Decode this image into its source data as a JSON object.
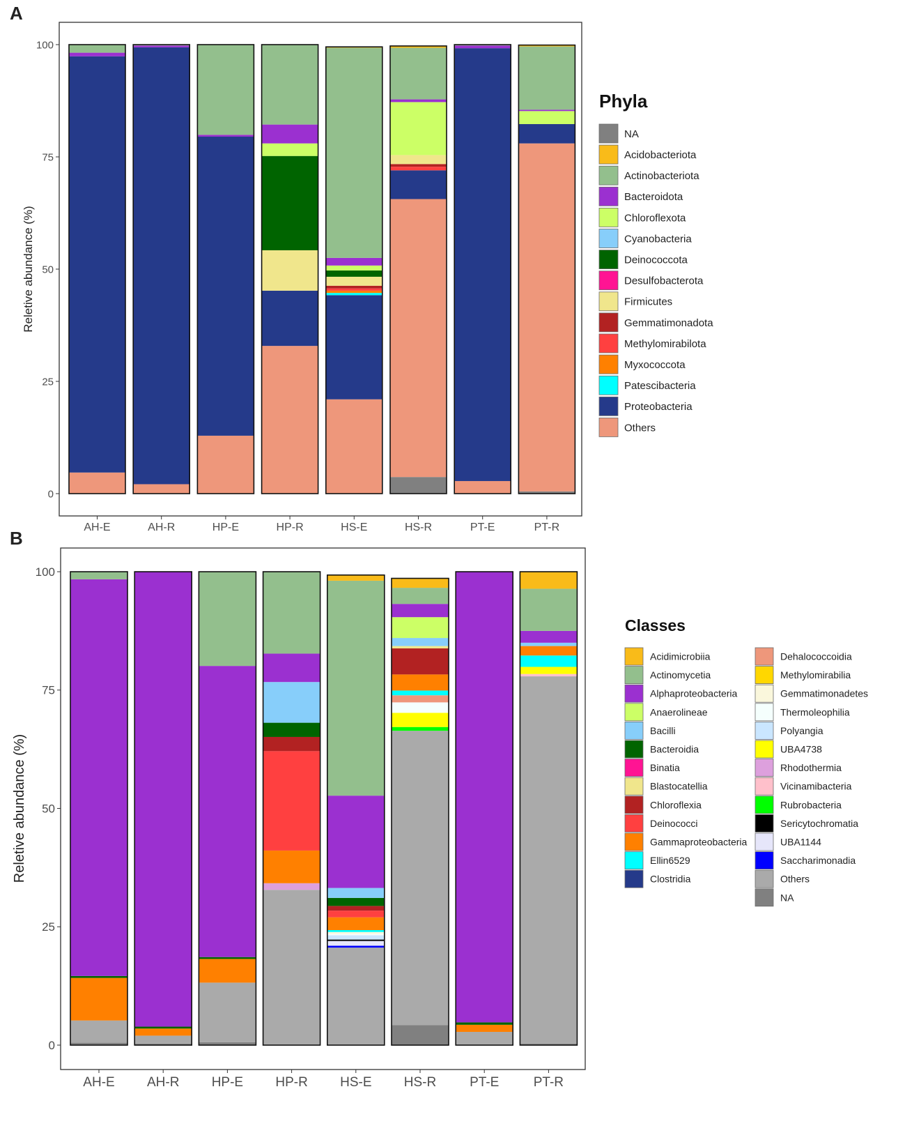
{
  "chart_data": [
    {
      "panel": "A",
      "type": "stacked-bar",
      "ylabel": "Reletive abundance (%)",
      "xlabel": "",
      "ylim": [
        0,
        100
      ],
      "yticks": [
        "0",
        "25",
        "50",
        "75",
        "100"
      ],
      "categories": [
        "AH-E",
        "AH-R",
        "HP-E",
        "HP-R",
        "HS-E",
        "HS-R",
        "PT-E",
        "PT-R"
      ],
      "legend_title": "Phyla",
      "legend": [
        {
          "name": "NA",
          "color": "#808080"
        },
        {
          "name": "Acidobacteriota",
          "color": "#F9BB19"
        },
        {
          "name": "Actinobacteriota",
          "color": "#93BF8D"
        },
        {
          "name": "Bacteroidota",
          "color": "#9B30D0"
        },
        {
          "name": "Chloroflexota",
          "color": "#CCFF66"
        },
        {
          "name": "Cyanobacteria",
          "color": "#87CEFA"
        },
        {
          "name": "Deinococcota",
          "color": "#006400"
        },
        {
          "name": "Desulfobacterota",
          "color": "#FF1493"
        },
        {
          "name": "Firmicutes",
          "color": "#F0E68C"
        },
        {
          "name": "Gemmatimonadota",
          "color": "#B22222"
        },
        {
          "name": "Methylomirabilota",
          "color": "#FF4040"
        },
        {
          "name": "Myxococcota",
          "color": "#FF8000"
        },
        {
          "name": "Patescibacteria",
          "color": "#00FFFF"
        },
        {
          "name": "Proteobacteria",
          "color": "#253A8A"
        },
        {
          "name": "Others",
          "color": "#EE977B"
        }
      ],
      "series": [
        {
          "name": "NA",
          "values": [
            0,
            0,
            0,
            0,
            0,
            3.7,
            0,
            0.5
          ]
        },
        {
          "name": "Others",
          "values": [
            4.7,
            2.1,
            12.9,
            32.9,
            21.0,
            61.9,
            2.8,
            77.5
          ]
        },
        {
          "name": "Proteobacteria",
          "values": [
            92.7,
            97.3,
            66.6,
            12.3,
            23.2,
            6.4,
            96.4,
            4.3
          ]
        },
        {
          "name": "Patescibacteria",
          "values": [
            0,
            0,
            0,
            0,
            0.5,
            0,
            0,
            0
          ]
        },
        {
          "name": "Myxococcota",
          "values": [
            0,
            0,
            0,
            0,
            0.5,
            0,
            0,
            0
          ]
        },
        {
          "name": "Methylomirabilota",
          "values": [
            0,
            0,
            0,
            0,
            0.5,
            0.8,
            0,
            0
          ]
        },
        {
          "name": "Gemmatimonadota",
          "values": [
            0,
            0,
            0,
            0,
            0.6,
            0.6,
            0,
            0
          ]
        },
        {
          "name": "Firmicutes",
          "values": [
            0,
            0,
            0,
            9.0,
            2.0,
            2.0,
            0,
            0
          ]
        },
        {
          "name": "Desulfobacterota",
          "values": [
            0,
            0,
            0,
            0,
            0,
            0,
            0,
            0
          ]
        },
        {
          "name": "Deinococcota",
          "values": [
            0,
            0,
            0,
            21.0,
            1.4,
            0,
            0,
            0
          ]
        },
        {
          "name": "Cyanobacteria",
          "values": [
            0,
            0,
            0,
            0,
            0,
            0,
            0,
            0
          ]
        },
        {
          "name": "Chloroflexota",
          "values": [
            0,
            0,
            0,
            2.8,
            1.1,
            11.8,
            0,
            2.9
          ]
        },
        {
          "name": "Bacteroidota",
          "values": [
            0.8,
            0.4,
            0.4,
            4.2,
            1.7,
            0.6,
            0.6,
            0.3
          ]
        },
        {
          "name": "Actinobacteriota",
          "values": [
            1.8,
            0.2,
            20.1,
            17.8,
            46.8,
            11.5,
            0.2,
            14.1
          ]
        },
        {
          "name": "Acidobacteriota",
          "values": [
            0,
            0,
            0,
            0,
            0.2,
            0.4,
            0,
            0.3
          ]
        }
      ]
    },
    {
      "panel": "B",
      "type": "stacked-bar",
      "ylabel": "Reletive abundance (%)",
      "xlabel": "",
      "ylim": [
        0,
        100
      ],
      "yticks": [
        "0",
        "25",
        "50",
        "75",
        "100"
      ],
      "categories": [
        "AH-E",
        "AH-R",
        "HP-E",
        "HP-R",
        "HS-E",
        "HS-R",
        "PT-E",
        "PT-R"
      ],
      "legend_title": "Classes",
      "legend": [
        {
          "name": "Acidimicrobiia",
          "color": "#F9BB19"
        },
        {
          "name": "Actinomycetia",
          "color": "#93BF8D"
        },
        {
          "name": "Alphaproteobacteria",
          "color": "#9B30D0"
        },
        {
          "name": "Anaerolineae",
          "color": "#CCFF66"
        },
        {
          "name": "Bacilli",
          "color": "#87CEFA"
        },
        {
          "name": "Bacteroidia",
          "color": "#006400"
        },
        {
          "name": "Binatia",
          "color": "#FF1493"
        },
        {
          "name": "Blastocatellia",
          "color": "#F0E68C"
        },
        {
          "name": "Chloroflexia",
          "color": "#B22222"
        },
        {
          "name": "Deinococci",
          "color": "#FF4040"
        },
        {
          "name": "Gammaproteobacteria",
          "color": "#FF8000"
        },
        {
          "name": "Ellin6529",
          "color": "#00FFFF"
        },
        {
          "name": "Clostridia",
          "color": "#253A8A"
        },
        {
          "name": "Dehalococcoidia",
          "color": "#EE977B"
        },
        {
          "name": "Methylomirabilia",
          "color": "#FFD700"
        },
        {
          "name": "Gemmatimonadetes",
          "color": "#FAF7DC"
        },
        {
          "name": "Thermoleophilia",
          "color": "#F5FFFD"
        },
        {
          "name": "Polyangia",
          "color": "#CAE6FF"
        },
        {
          "name": "UBA4738",
          "color": "#FFFF00"
        },
        {
          "name": "Rhodothermia",
          "color": "#DDA0DD"
        },
        {
          "name": "Vicinamibacteria",
          "color": "#FFC0CB"
        },
        {
          "name": "Rubrobacteria",
          "color": "#00FF00"
        },
        {
          "name": "Sericytochromatia",
          "color": "#000000"
        },
        {
          "name": "UBA1144",
          "color": "#E6E6FA"
        },
        {
          "name": "Saccharimonadia",
          "color": "#0000FF"
        },
        {
          "name": "Others",
          "color": "#AAAAAA"
        },
        {
          "name": "NA",
          "color": "#808080"
        }
      ],
      "series": [
        {
          "name": "NA",
          "values": [
            0.5,
            0.3,
            0.6,
            0,
            0,
            4.2,
            0,
            0.3
          ]
        },
        {
          "name": "Others",
          "values": [
            4.7,
            1.7,
            12.6,
            32.8,
            20.6,
            62.2,
            2.8,
            77.6
          ]
        },
        {
          "name": "Saccharimonadia",
          "values": [
            0,
            0,
            0,
            0,
            0.4,
            0,
            0,
            0
          ]
        },
        {
          "name": "UBA1144",
          "values": [
            0,
            0,
            0,
            0,
            1.0,
            0,
            0,
            0
          ]
        },
        {
          "name": "Sericytochromatia",
          "values": [
            0,
            0,
            0,
            0,
            0.3,
            0,
            0,
            0
          ]
        },
        {
          "name": "Rubrobacteria",
          "values": [
            0,
            0,
            0,
            0,
            0,
            0.8,
            0,
            0
          ]
        },
        {
          "name": "Vicinamibacteria",
          "values": [
            0,
            0,
            0,
            0,
            0,
            0,
            0,
            0.5
          ]
        },
        {
          "name": "Rhodothermia",
          "values": [
            0,
            0,
            0,
            1.4,
            0,
            0,
            0,
            0
          ]
        },
        {
          "name": "UBA4738",
          "values": [
            0,
            0,
            0,
            0,
            0,
            3.0,
            0,
            1.5
          ]
        },
        {
          "name": "Polyangia",
          "values": [
            0,
            0,
            0,
            0,
            0.9,
            0,
            0,
            0
          ]
        },
        {
          "name": "Thermoleophilia",
          "values": [
            0,
            0,
            0,
            0,
            0.3,
            2.2,
            0,
            0
          ]
        },
        {
          "name": "Gemmatimonadetes",
          "values": [
            0,
            0,
            0,
            0,
            0.4,
            0,
            0,
            0
          ]
        },
        {
          "name": "Methylomirabilia",
          "values": [
            0,
            0,
            0,
            0,
            0,
            0,
            0,
            0
          ]
        },
        {
          "name": "Dehalococcoidia",
          "values": [
            0,
            0,
            0,
            0,
            0,
            1.5,
            0,
            0
          ]
        },
        {
          "name": "Clostridia",
          "values": [
            0,
            0,
            0,
            0,
            0,
            0,
            0,
            0
          ]
        },
        {
          "name": "Ellin6529",
          "values": [
            0,
            0,
            0,
            0,
            0.4,
            1.0,
            0,
            2.4
          ]
        },
        {
          "name": "Gammaproteobacteria",
          "values": [
            9.0,
            1.5,
            5.0,
            6.9,
            2.7,
            3.4,
            1.5,
            2.0
          ]
        },
        {
          "name": "Deinococci",
          "values": [
            0,
            0,
            0,
            21.0,
            1.4,
            0,
            0,
            0
          ]
        },
        {
          "name": "Chloroflexia",
          "values": [
            0,
            0,
            0,
            3.0,
            1.0,
            5.5,
            0,
            0
          ]
        },
        {
          "name": "Blastocatellia",
          "values": [
            0,
            0,
            0,
            0,
            0,
            0.5,
            0,
            0
          ]
        },
        {
          "name": "Binatia",
          "values": [
            0,
            0,
            0,
            0,
            0,
            0,
            0,
            0
          ]
        },
        {
          "name": "Bacteroidia",
          "values": [
            0.4,
            0.4,
            0.4,
            3.0,
            1.7,
            0,
            0.5,
            0
          ]
        },
        {
          "name": "Bacilli",
          "values": [
            0,
            0,
            0,
            8.6,
            2.1,
            1.7,
            0,
            0.7
          ]
        },
        {
          "name": "Anaerolineae",
          "values": [
            0,
            0,
            0,
            0,
            0,
            4.4,
            0,
            0
          ]
        },
        {
          "name": "Alphaproteobacteria",
          "values": [
            83.8,
            96.1,
            61.5,
            6.0,
            19.5,
            2.8,
            95.2,
            2.5
          ]
        },
        {
          "name": "Actinomycetia",
          "values": [
            1.6,
            0,
            19.9,
            17.3,
            45.4,
            3.4,
            0,
            8.9
          ]
        },
        {
          "name": "Acidimicrobiia",
          "values": [
            0,
            0,
            0,
            0,
            1.2,
            2.0,
            0,
            3.6
          ]
        }
      ]
    }
  ],
  "panel_labels": {
    "a": "A",
    "b": "B"
  }
}
